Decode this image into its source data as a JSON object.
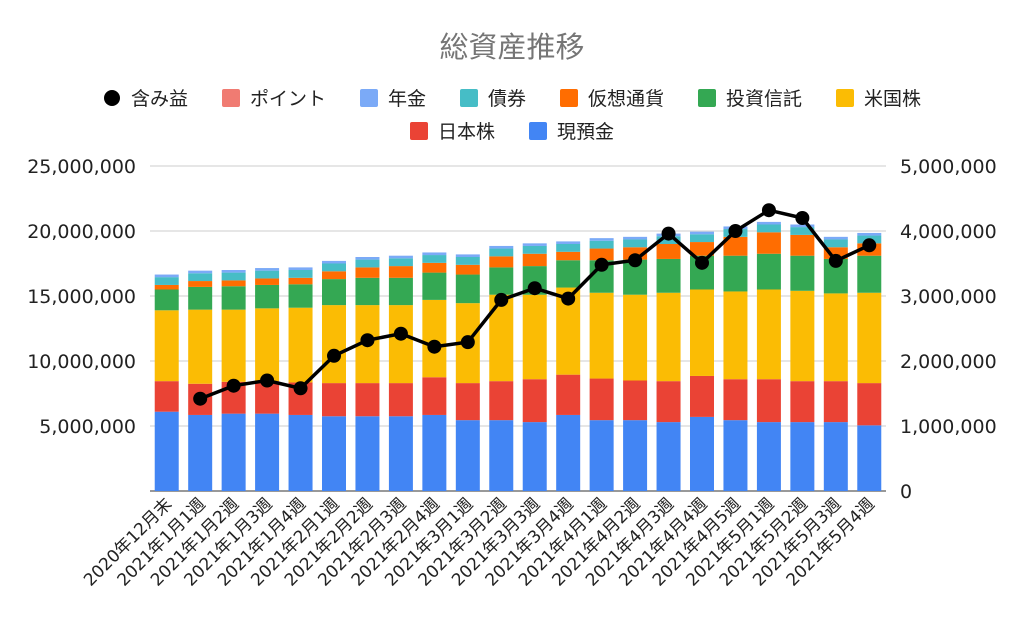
{
  "chart_data": {
    "type": "bar",
    "stacked": true,
    "title": "総資産推移",
    "legend_position": "top",
    "grid": true,
    "categories": [
      "2020年12月末",
      "2021年1月1週",
      "2021年1月2週",
      "2021年1月3週",
      "2021年1月4週",
      "2021年2月1週",
      "2021年2月2週",
      "2021年2月3週",
      "2021年2月4週",
      "2021年3月1週",
      "2021年3月2週",
      "2021年3月3週",
      "2021年3月4週",
      "2021年4月1週",
      "2021年4月2週",
      "2021年4月3週",
      "2021年4月4週",
      "2021年4月5週",
      "2021年5月1週",
      "2021年5月2週",
      "2021年5月3週",
      "2021年5月4週"
    ],
    "y_left": {
      "min": 0,
      "max": 25000000,
      "ticks": [
        "",
        "5,000,000",
        "10,000,000",
        "15,000,000",
        "20,000,000",
        "25,000,000"
      ]
    },
    "y_right": {
      "min": 0,
      "max": 5000000,
      "ticks": [
        "0",
        "1,000,000",
        "2,000,000",
        "3,000,000",
        "4,000,000",
        "5,000,000"
      ]
    },
    "series": [
      {
        "name": "現預金",
        "color": "#4285f4",
        "values": [
          6100000,
          5850000,
          5950000,
          5950000,
          5850000,
          5750000,
          5750000,
          5750000,
          5850000,
          5450000,
          5450000,
          5300000,
          5850000,
          5450000,
          5450000,
          5300000,
          5700000,
          5450000,
          5300000,
          5300000,
          5300000,
          5050000
        ]
      },
      {
        "name": "日本株",
        "color": "#ea4335",
        "values": [
          2350000,
          2400000,
          2450000,
          2500000,
          2500000,
          2550000,
          2550000,
          2550000,
          2900000,
          2850000,
          3000000,
          3300000,
          3100000,
          3200000,
          3050000,
          3150000,
          3150000,
          3150000,
          3300000,
          3150000,
          3150000,
          3250000
        ]
      },
      {
        "name": "米国株",
        "color": "#fbbc04",
        "values": [
          5450000,
          5700000,
          5550000,
          5600000,
          5750000,
          6000000,
          6000000,
          6000000,
          5950000,
          6150000,
          6650000,
          6500000,
          6700000,
          6600000,
          6600000,
          6800000,
          6650000,
          6750000,
          6900000,
          6950000,
          6750000,
          6950000
        ]
      },
      {
        "name": "投資信託",
        "color": "#34a853",
        "values": [
          1600000,
          1750000,
          1800000,
          1800000,
          1800000,
          2000000,
          2100000,
          2100000,
          2100000,
          2200000,
          2100000,
          2200000,
          2100000,
          2500000,
          2700000,
          2600000,
          2600000,
          2750000,
          2750000,
          2700000,
          2650000,
          2850000
        ]
      },
      {
        "name": "仮想通貨",
        "color": "#ff6d01",
        "values": [
          350000,
          450000,
          450000,
          500000,
          500000,
          600000,
          800000,
          900000,
          750000,
          750000,
          850000,
          950000,
          650000,
          900000,
          950000,
          1150000,
          1050000,
          1450000,
          1650000,
          1600000,
          900000,
          950000
        ]
      },
      {
        "name": "債券",
        "color": "#46bdc6",
        "values": [
          600000,
          600000,
          600000,
          600000,
          600000,
          600000,
          600000,
          600000,
          600000,
          600000,
          600000,
          600000,
          600000,
          600000,
          600000,
          600000,
          600000,
          600000,
          600000,
          600000,
          600000,
          600000
        ]
      },
      {
        "name": "年金",
        "color": "#7baaf7",
        "values": [
          200000,
          200000,
          200000,
          200000,
          200000,
          200000,
          200000,
          200000,
          200000,
          200000,
          200000,
          200000,
          200000,
          200000,
          200000,
          200000,
          200000,
          200000,
          200000,
          200000,
          200000,
          200000
        ]
      },
      {
        "name": "ポイント",
        "color": "#f07b72",
        "values": [
          0,
          0,
          0,
          0,
          0,
          0,
          0,
          0,
          0,
          0,
          0,
          0,
          0,
          0,
          0,
          0,
          0,
          0,
          0,
          0,
          0,
          0
        ]
      }
    ],
    "line_series": {
      "name": "含み益",
      "color": "#000000",
      "axis": "right",
      "values": [
        null,
        1420000,
        1620000,
        1700000,
        1580000,
        2080000,
        2320000,
        2420000,
        2220000,
        2290000,
        2940000,
        3120000,
        2960000,
        3480000,
        3550000,
        3960000,
        3510000,
        4000000,
        4320000,
        4200000,
        3540000,
        3780000
      ]
    },
    "legend_order": [
      "含み益",
      "ポイント",
      "年金",
      "債券",
      "仮想通貨",
      "投資信託",
      "米国株",
      "日本株",
      "現預金"
    ]
  }
}
